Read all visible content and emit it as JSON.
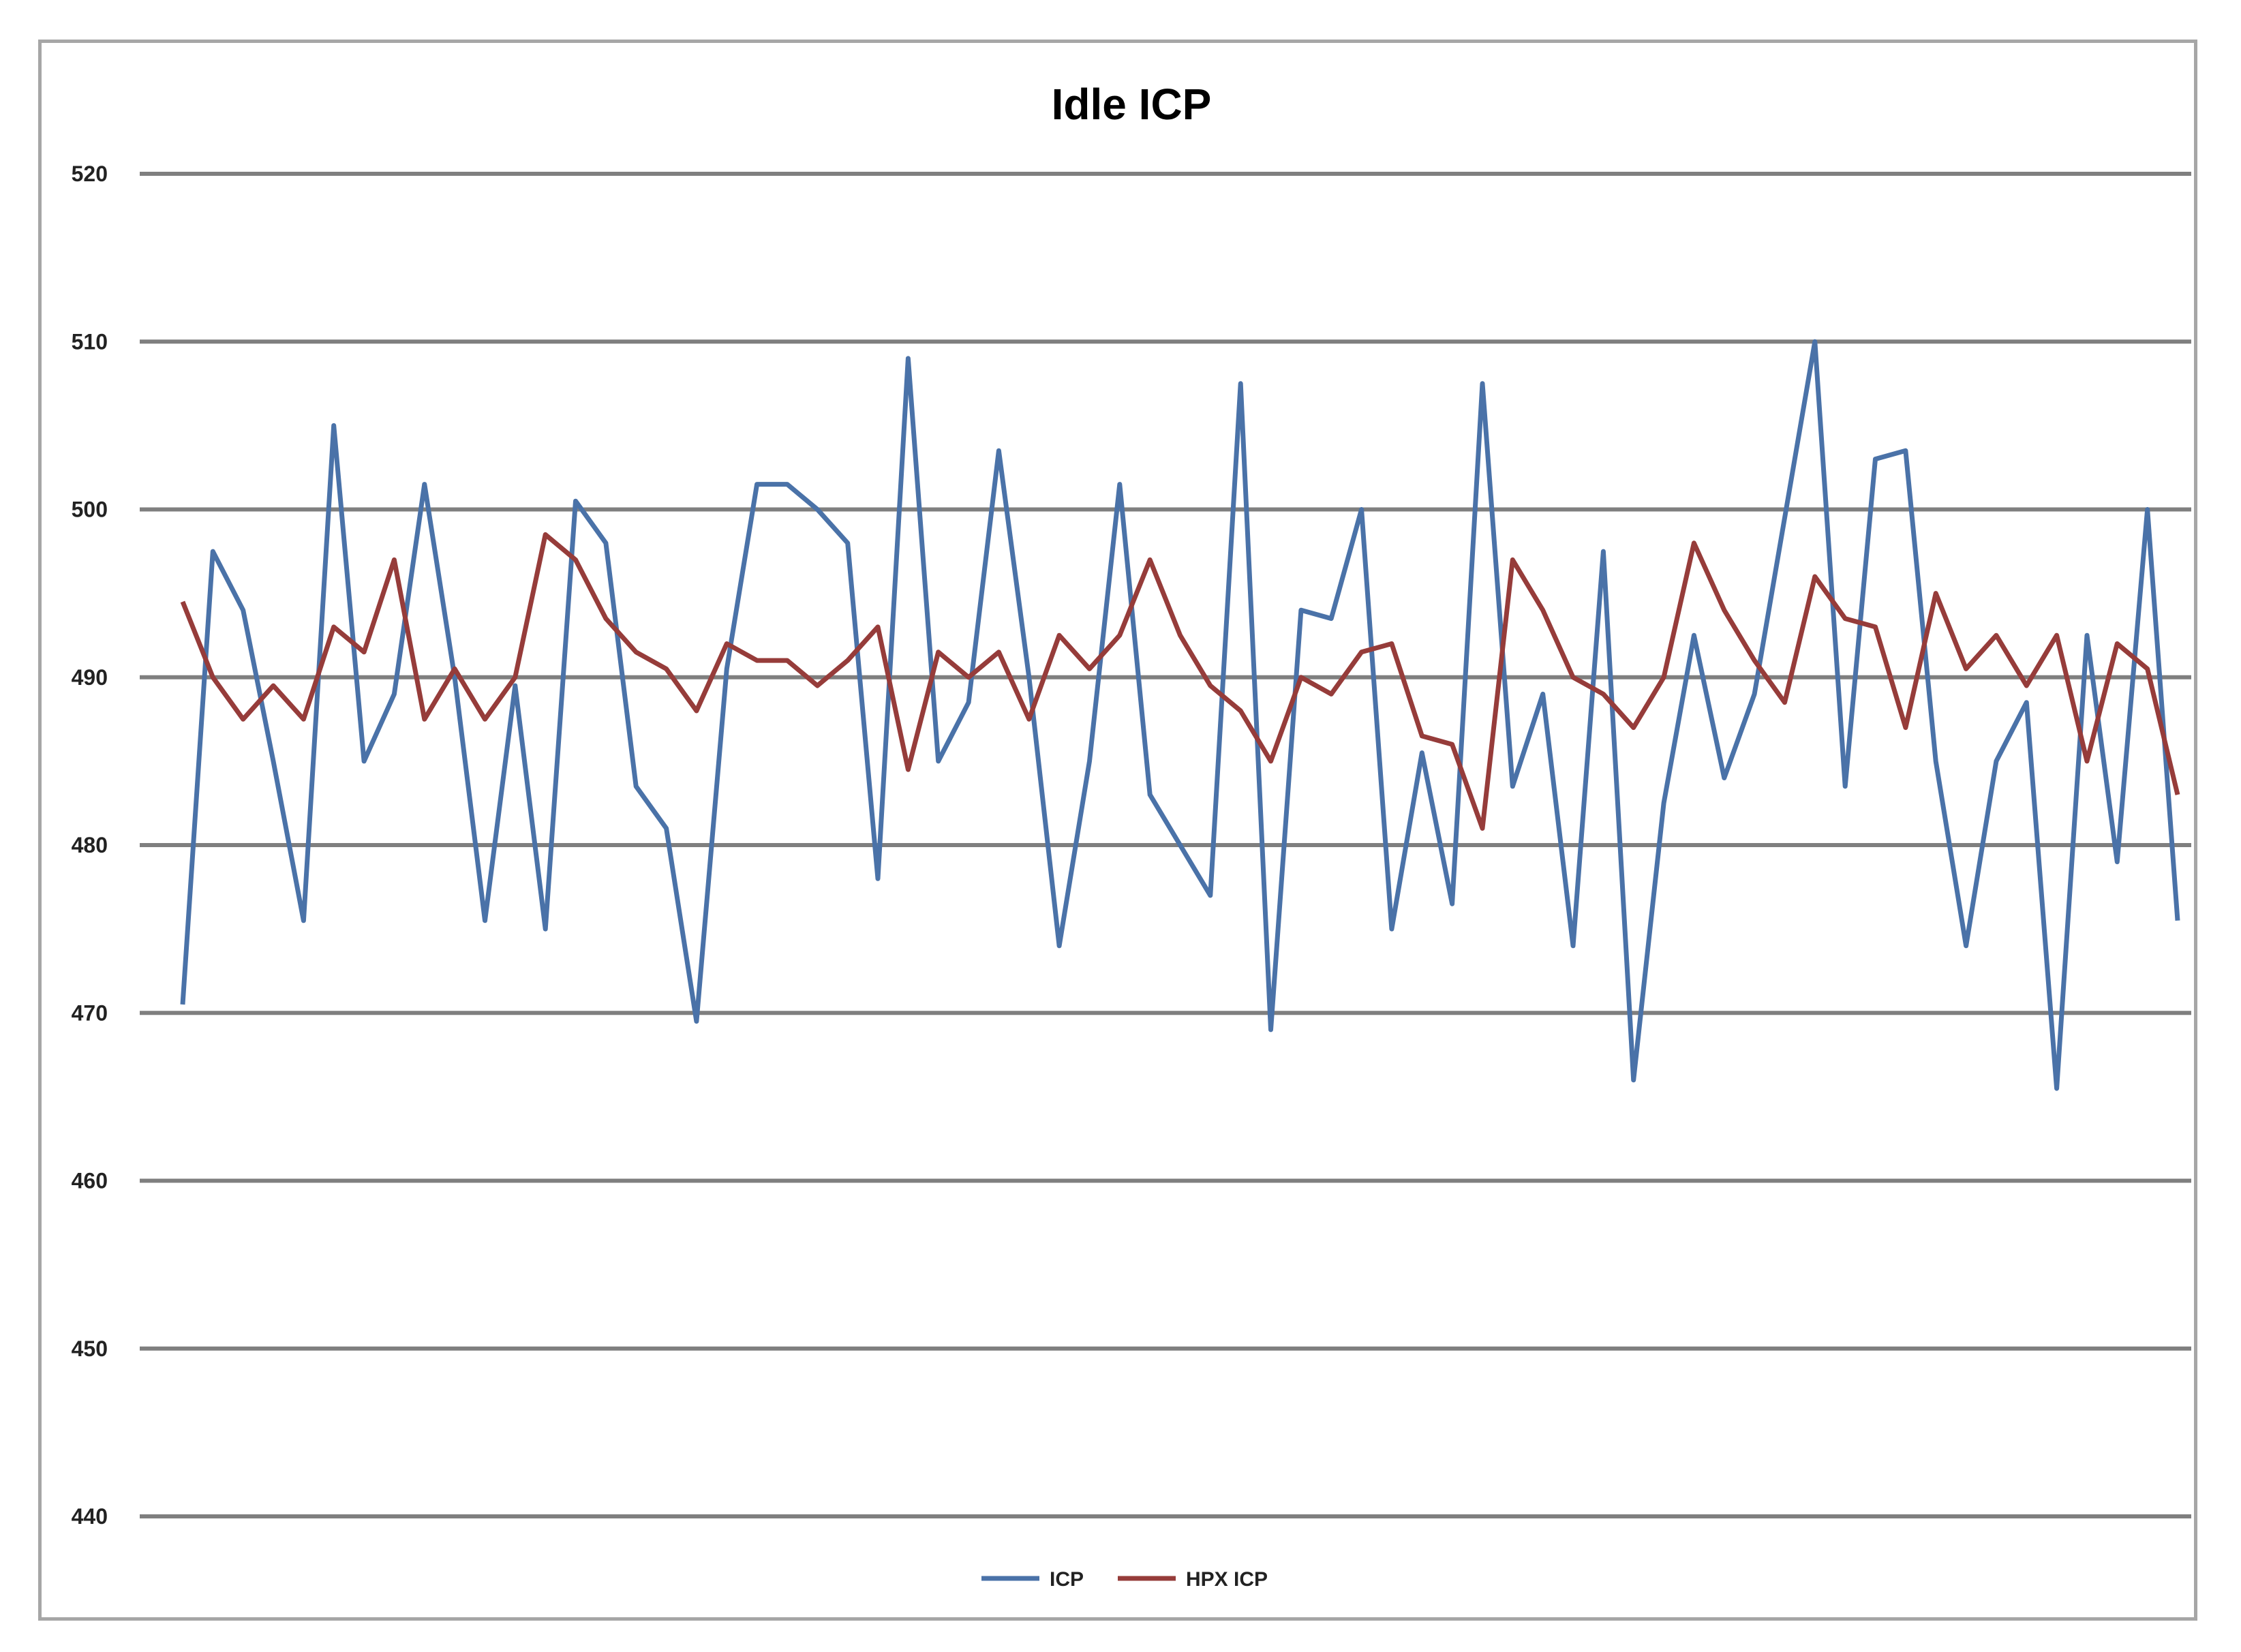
{
  "chart_data": {
    "type": "line",
    "title": "Idle ICP",
    "xlabel": "",
    "ylabel": "",
    "ylim": [
      440,
      520
    ],
    "yticks": [
      "440",
      "450",
      "460",
      "470",
      "480",
      "490",
      "500",
      "510",
      "520"
    ],
    "grid": true,
    "legend_position": "bottom",
    "colors": {
      "ICP": "#4a72a8",
      "HPX ICP": "#963c3a",
      "grid": "#7f7f7f",
      "frame": "#a6a6a6"
    },
    "series": [
      {
        "name": "ICP",
        "values": [
          470.5,
          497.5,
          494,
          485,
          475.5,
          505,
          485,
          489,
          501.5,
          490,
          475.5,
          489.5,
          475,
          500.5,
          498,
          483.5,
          481,
          469.5,
          490.5,
          501.5,
          501.5,
          500,
          498,
          478,
          509,
          485,
          488.5,
          503.5,
          490,
          474,
          485,
          501.5,
          483,
          480,
          477,
          507.5,
          469,
          494,
          493.5,
          500,
          475,
          485.5,
          476.5,
          507.5,
          483.5,
          489,
          474,
          497.5,
          466,
          482.5,
          492.5,
          484,
          489,
          499.5,
          510,
          483.5,
          503,
          503.5,
          485,
          474,
          485,
          488.5,
          465.5,
          492.5,
          479,
          500,
          475.5
        ]
      },
      {
        "name": "HPX ICP",
        "values": [
          494.5,
          490,
          487.5,
          489.5,
          487.5,
          493,
          491.5,
          497,
          487.5,
          490.5,
          487.5,
          490,
          498.5,
          497,
          493.5,
          491.5,
          490.5,
          488,
          492,
          491,
          491,
          489.5,
          491,
          493,
          484.5,
          491.5,
          490,
          491.5,
          487.5,
          492.5,
          490.5,
          492.5,
          497,
          492.5,
          489.5,
          488,
          485,
          490,
          489,
          491.5,
          492,
          486.5,
          486,
          481,
          497,
          494,
          490,
          489,
          487,
          490,
          498,
          494,
          491,
          488.5,
          496,
          493.5,
          493,
          487,
          495,
          490.5,
          492.5,
          489.5,
          492.5,
          485,
          492,
          490.5,
          483
        ]
      }
    ]
  }
}
